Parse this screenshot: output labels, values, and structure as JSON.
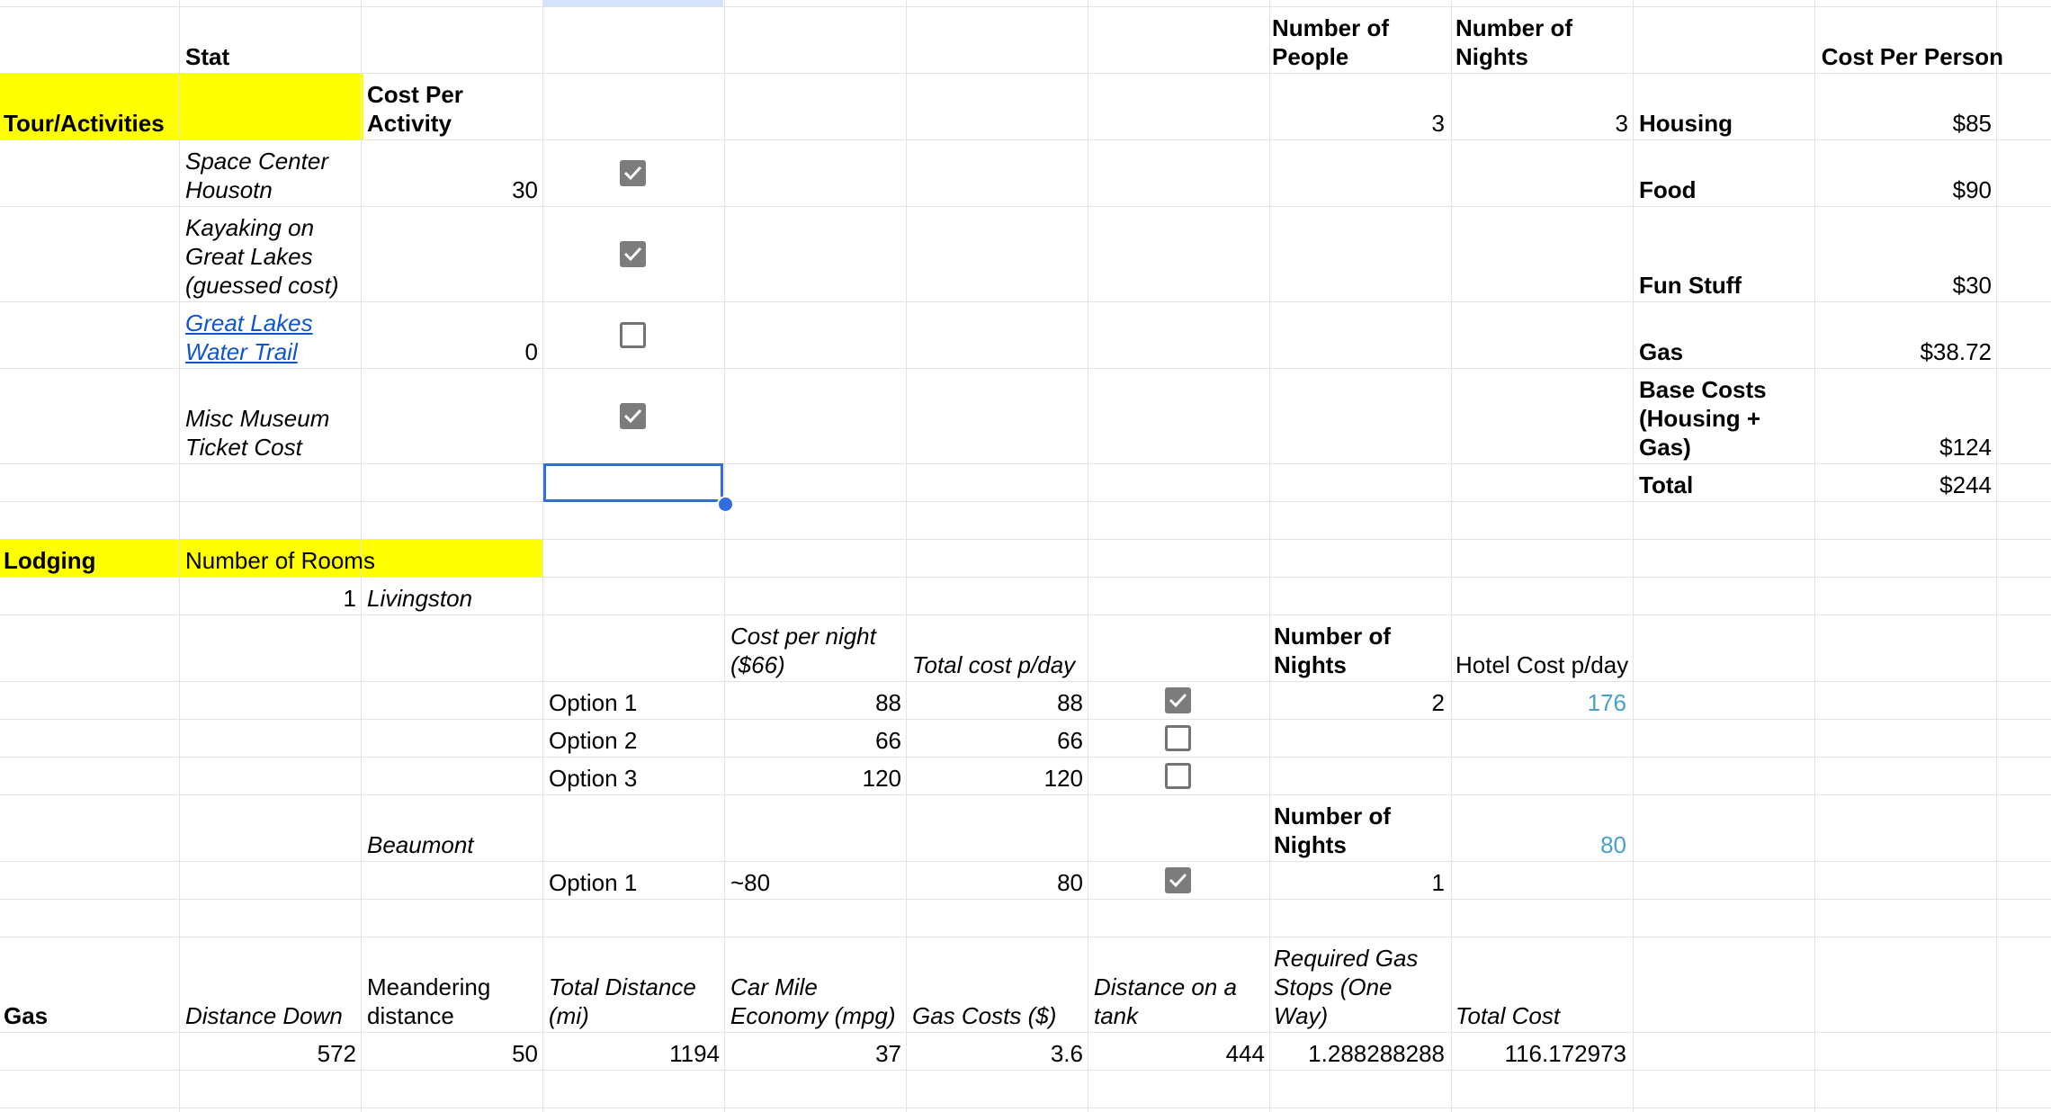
{
  "colors": {
    "yellow": "#ffff00",
    "teal": "#46a2c9",
    "link": "#1155cc",
    "selection": "#2f6de0",
    "gridline": "#e2e3e3"
  },
  "header": {
    "stat": "Stat",
    "num_people": "Number of People",
    "num_nights": "Number of Nights",
    "cost_per_person": "Cost Per Person"
  },
  "tours": {
    "label": "Tour/Activities",
    "cost_header": "Cost Per Activity",
    "people": "3",
    "nights": "3",
    "items": [
      {
        "name": "Space Center Housotn",
        "cost": "30",
        "checked": true
      },
      {
        "name": "Kayaking on Great Lakes (guessed cost)",
        "cost": "",
        "checked": true
      },
      {
        "name": "Great Lakes Water Trail",
        "cost": "0",
        "checked": false
      },
      {
        "name": "Misc Museum Ticket Cost",
        "cost": "",
        "checked": true
      }
    ]
  },
  "summary": [
    {
      "label": "Housing",
      "value": "$85"
    },
    {
      "label": "Food",
      "value": "$90"
    },
    {
      "label": "Fun Stuff",
      "value": "$30"
    },
    {
      "label": "Gas",
      "value": "$38.72"
    },
    {
      "label": "Base Costs (Housing + Gas)",
      "value": "$124"
    },
    {
      "label": "Total",
      "value": "$244"
    }
  ],
  "lodging": {
    "label": "Lodging",
    "rooms_header": "Number of Rooms",
    "rooms": "1",
    "livingston": {
      "city": "Livingston",
      "cost_header": "Cost per night ($66)",
      "total_header": "Total cost p/day",
      "nights_header": "Number of Nights",
      "hotel_header": "Hotel Cost p/day",
      "nights": "2",
      "hotel_cost": "176",
      "options": [
        {
          "name": "Option 1",
          "cost": "88",
          "total": "88",
          "checked": true
        },
        {
          "name": "Option 2",
          "cost": "66",
          "total": "66",
          "checked": false
        },
        {
          "name": "Option 3",
          "cost": "120",
          "total": "120",
          "checked": false
        }
      ]
    },
    "beaumont": {
      "city": "Beaumont",
      "nights_header": "Number of Nights",
      "hotel_cost": "80",
      "option": {
        "name": "Option 1",
        "cost": "~80",
        "total": "80",
        "checked": true
      },
      "nights": "1"
    }
  },
  "gas": {
    "label": "Gas",
    "headers": {
      "distance_down": "Distance Down",
      "meandering": "Meandering distance",
      "total_distance": "Total Distance (mi)",
      "mpg": "Car Mile Economy (mpg)",
      "gas_costs": "Gas Costs ($)",
      "distance_tank": "Distance on a tank",
      "stops": "Required Gas Stops (One Way)",
      "total_cost": "Total Cost"
    },
    "values": {
      "distance_down": "572",
      "meandering": "50",
      "total_distance": "1194",
      "mpg": "37",
      "gas_costs": "3.6",
      "distance_tank": "444",
      "stops": "1.288288288",
      "total_cost": "116.172973"
    }
  }
}
